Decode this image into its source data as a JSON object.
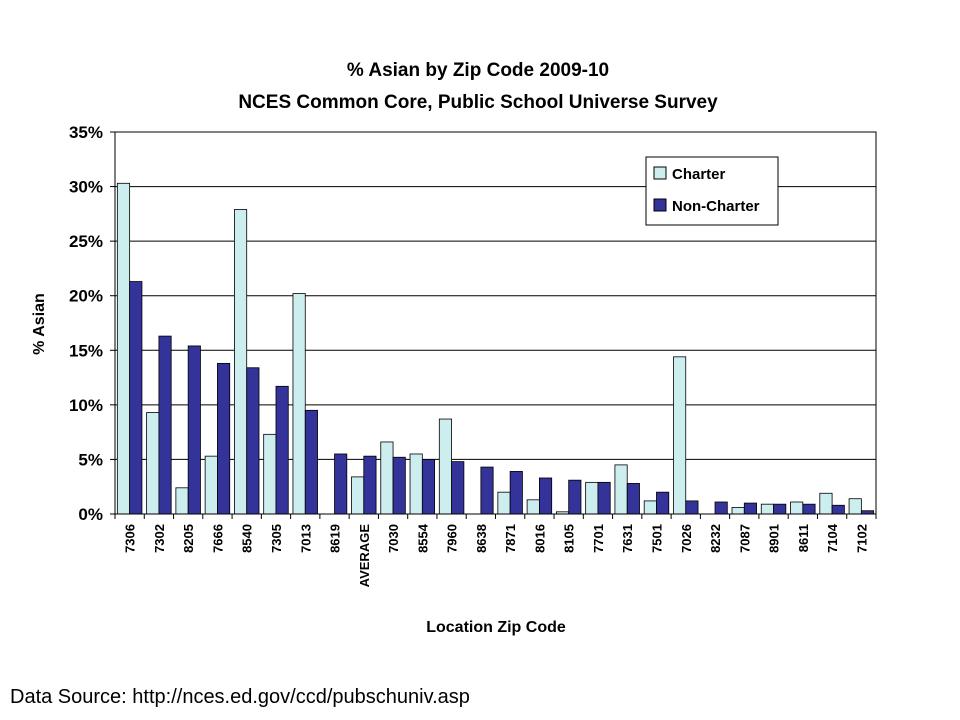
{
  "chart_data": {
    "type": "bar",
    "title": "% Asian by Zip Code 2009-10",
    "subtitle": "NCES Common Core, Public School Universe Survey",
    "xlabel": "Location Zip Code",
    "ylabel": "% Asian",
    "ylim": [
      0,
      35
    ],
    "yticks": [
      "0%",
      "5%",
      "10%",
      "15%",
      "20%",
      "25%",
      "30%",
      "35%"
    ],
    "grid": true,
    "legend_position": "top-right",
    "categories": [
      "7306",
      "7302",
      "8205",
      "7666",
      "8540",
      "7305",
      "7013",
      "8619",
      "AVERAGE",
      "7030",
      "8554",
      "7960",
      "8638",
      "7871",
      "8016",
      "8105",
      "7701",
      "7631",
      "7501",
      "7026",
      "8232",
      "7087",
      "8901",
      "8611",
      "7104",
      "7102"
    ],
    "series": [
      {
        "name": "Charter",
        "color": "#cdeeee",
        "values": [
          30.3,
          9.3,
          2.4,
          5.3,
          27.9,
          7.3,
          20.2,
          0,
          3.4,
          6.6,
          5.5,
          8.7,
          0,
          2.0,
          1.3,
          0.2,
          2.9,
          4.5,
          1.2,
          14.4,
          0,
          0.6,
          0.9,
          1.1,
          1.9,
          1.4
        ]
      },
      {
        "name": "Non-Charter",
        "color": "#333399",
        "values": [
          21.3,
          16.3,
          15.4,
          13.8,
          13.4,
          11.7,
          9.5,
          5.5,
          5.3,
          5.2,
          5.0,
          4.8,
          4.3,
          3.9,
          3.3,
          3.1,
          2.9,
          2.8,
          2.0,
          1.2,
          1.1,
          1.0,
          0.9,
          0.9,
          0.8,
          0.3
        ]
      }
    ]
  },
  "footer": {
    "source": "Data Source: http://nces.ed.gov/ccd/pubschuniv.asp"
  }
}
